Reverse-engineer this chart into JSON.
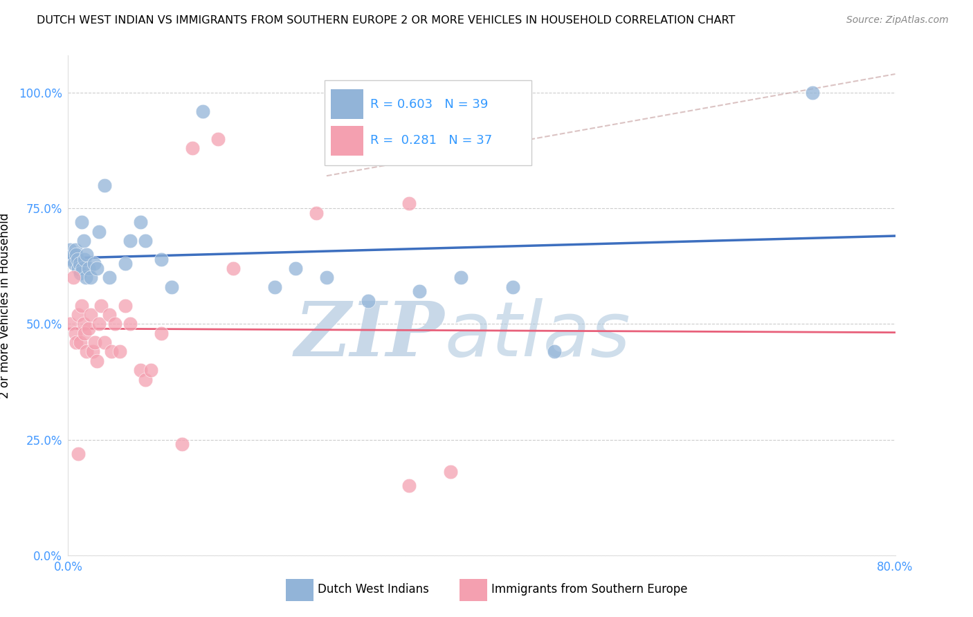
{
  "title": "DUTCH WEST INDIAN VS IMMIGRANTS FROM SOUTHERN EUROPE 2 OR MORE VEHICLES IN HOUSEHOLD CORRELATION CHART",
  "source": "Source: ZipAtlas.com",
  "ylabel": "2 or more Vehicles in Household",
  "ytick_labels": [
    "0.0%",
    "25.0%",
    "50.0%",
    "75.0%",
    "100.0%"
  ],
  "ytick_values": [
    0.0,
    0.25,
    0.5,
    0.75,
    1.0
  ],
  "xlim": [
    0.0,
    0.8
  ],
  "ylim": [
    0.0,
    1.08
  ],
  "blue_color": "#92B4D8",
  "pink_color": "#F4A0B0",
  "blue_line_color": "#3D6FBF",
  "pink_line_color": "#E8607A",
  "grid_color": "#CCCCCC",
  "legend_blue_label": "Dutch West Indians",
  "legend_pink_label": "Immigrants from Southern Europe",
  "R_blue": 0.603,
  "N_blue": 39,
  "R_pink": 0.281,
  "N_pink": 37,
  "blue_x": [
    0.002,
    0.004,
    0.005,
    0.006,
    0.007,
    0.008,
    0.009,
    0.01,
    0.011,
    0.012,
    0.013,
    0.014,
    0.015,
    0.016,
    0.017,
    0.018,
    0.02,
    0.022,
    0.025,
    0.028,
    0.03,
    0.035,
    0.04,
    0.055,
    0.06,
    0.07,
    0.075,
    0.09,
    0.1,
    0.13,
    0.2,
    0.22,
    0.25,
    0.29,
    0.34,
    0.38,
    0.43,
    0.47,
    0.72
  ],
  "blue_y": [
    0.66,
    0.64,
    0.65,
    0.63,
    0.66,
    0.65,
    0.64,
    0.62,
    0.63,
    0.61,
    0.72,
    0.62,
    0.68,
    0.64,
    0.6,
    0.65,
    0.62,
    0.6,
    0.63,
    0.62,
    0.7,
    0.8,
    0.6,
    0.63,
    0.68,
    0.72,
    0.68,
    0.64,
    0.58,
    0.96,
    0.58,
    0.62,
    0.6,
    0.55,
    0.57,
    0.6,
    0.58,
    0.44,
    1.0
  ],
  "pink_x": [
    0.002,
    0.005,
    0.007,
    0.008,
    0.01,
    0.012,
    0.013,
    0.015,
    0.016,
    0.018,
    0.02,
    0.022,
    0.024,
    0.026,
    0.028,
    0.03,
    0.032,
    0.035,
    0.04,
    0.042,
    0.045,
    0.05,
    0.055,
    0.06,
    0.07,
    0.075,
    0.08,
    0.09,
    0.11,
    0.12,
    0.145,
    0.16,
    0.24,
    0.33,
    0.37,
    0.01,
    0.33
  ],
  "pink_y": [
    0.5,
    0.6,
    0.48,
    0.46,
    0.52,
    0.46,
    0.54,
    0.5,
    0.48,
    0.44,
    0.49,
    0.52,
    0.44,
    0.46,
    0.42,
    0.5,
    0.54,
    0.46,
    0.52,
    0.44,
    0.5,
    0.44,
    0.54,
    0.5,
    0.4,
    0.38,
    0.4,
    0.48,
    0.24,
    0.88,
    0.9,
    0.62,
    0.74,
    0.76,
    0.18,
    0.22,
    0.15
  ],
  "ref_line_x": [
    0.25,
    0.8
  ],
  "ref_line_y": [
    0.82,
    1.04
  ],
  "watermark_zip_color": "#C8D8E8",
  "watermark_atlas_color": "#A8C4DC",
  "watermark_fontsize": 80
}
